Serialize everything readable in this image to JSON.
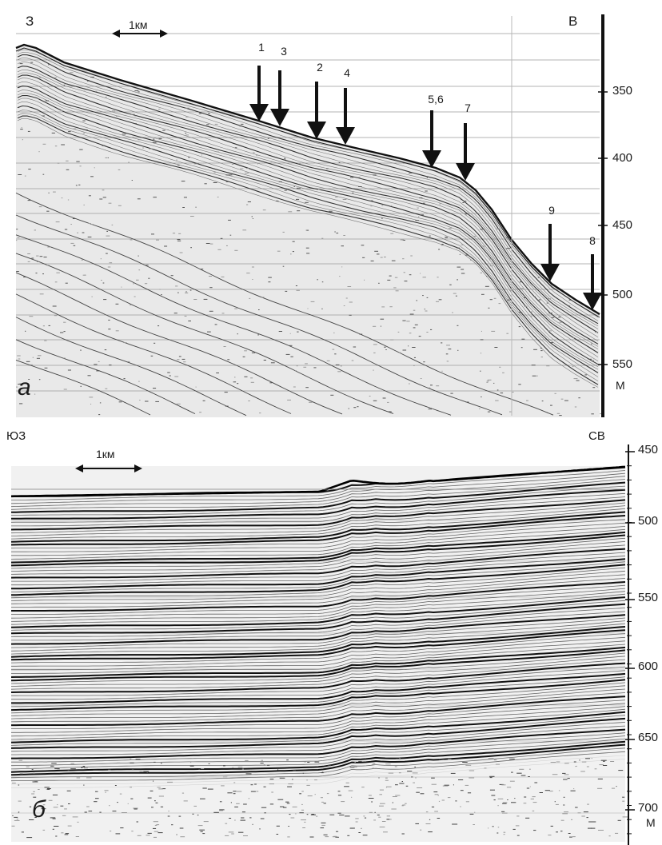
{
  "panel_a": {
    "dir_left": "З",
    "dir_right": "В",
    "scale_label": "1км",
    "panel_label": "а",
    "unit": "М",
    "depth_ticks": [
      "350",
      "400",
      "450",
      "500",
      "550"
    ],
    "arrows": [
      {
        "label": "1"
      },
      {
        "label": "3"
      },
      {
        "label": "2"
      },
      {
        "label": "4"
      },
      {
        "label": "5,6"
      },
      {
        "label": "7"
      },
      {
        "label": "9"
      },
      {
        "label": "8"
      }
    ]
  },
  "panel_b": {
    "dir_left": "ЮЗ",
    "dir_right": "СВ",
    "scale_label": "1км",
    "panel_label": "б",
    "unit": "М",
    "depth_ticks": [
      "450",
      "500",
      "550",
      "600",
      "650",
      "700"
    ]
  }
}
